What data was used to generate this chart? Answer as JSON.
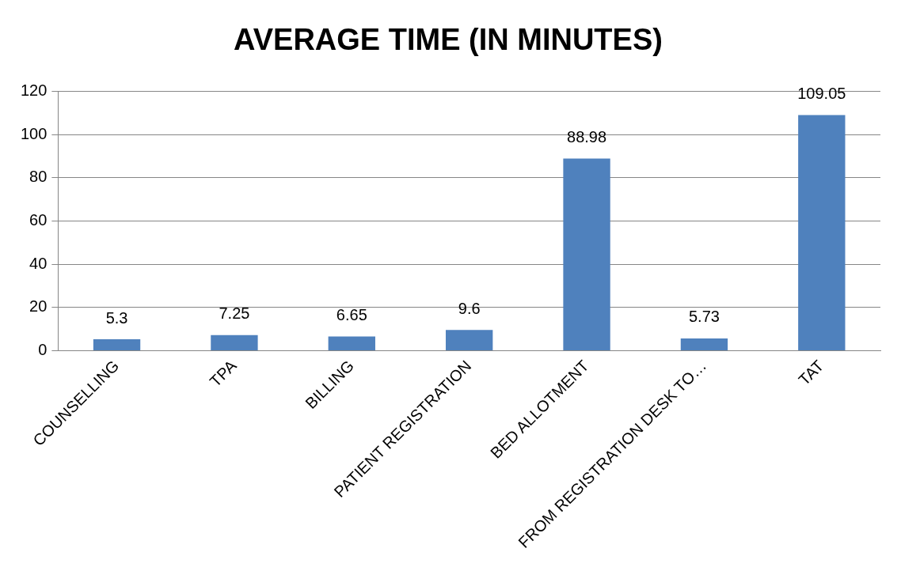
{
  "chart_data": {
    "type": "bar",
    "title": "AVERAGE TIME (IN MINUTES)",
    "categories": [
      "COUNSELLING",
      "TPA",
      "BILLING",
      "PATIENT REGISTRATION",
      "BED ALLOTMENT",
      "FROM REGISTRATION DESK TO…",
      "TAT"
    ],
    "values": [
      5.3,
      7.25,
      6.65,
      9.6,
      88.98,
      5.73,
      109.05
    ],
    "color": "#4f81bd",
    "ylim": [
      0,
      120
    ],
    "yticks": [
      0,
      20,
      40,
      60,
      80,
      100,
      120
    ],
    "grid": "y",
    "data_labels": true,
    "legend": false
  }
}
